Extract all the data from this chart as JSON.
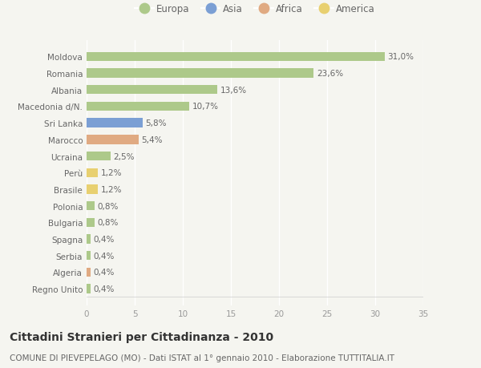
{
  "countries": [
    "Moldova",
    "Romania",
    "Albania",
    "Macedonia d/N.",
    "Sri Lanka",
    "Marocco",
    "Ucraina",
    "Perù",
    "Brasile",
    "Polonia",
    "Bulgaria",
    "Spagna",
    "Serbia",
    "Algeria",
    "Regno Unito"
  ],
  "values": [
    31.0,
    23.6,
    13.6,
    10.7,
    5.8,
    5.4,
    2.5,
    1.2,
    1.2,
    0.8,
    0.8,
    0.4,
    0.4,
    0.4,
    0.4
  ],
  "labels": [
    "31,0%",
    "23,6%",
    "13,6%",
    "10,7%",
    "5,8%",
    "5,4%",
    "2,5%",
    "1,2%",
    "1,2%",
    "0,8%",
    "0,8%",
    "0,4%",
    "0,4%",
    "0,4%",
    "0,4%"
  ],
  "continents": [
    "Europa",
    "Europa",
    "Europa",
    "Europa",
    "Asia",
    "Africa",
    "Europa",
    "America",
    "America",
    "Europa",
    "Europa",
    "Europa",
    "Europa",
    "Africa",
    "Europa"
  ],
  "continent_colors": {
    "Europa": "#adc98a",
    "Asia": "#7b9fd4",
    "Africa": "#e0aa82",
    "America": "#e8d070"
  },
  "legend_order": [
    "Europa",
    "Asia",
    "Africa",
    "America"
  ],
  "xlim": [
    0,
    35
  ],
  "xticks": [
    0,
    5,
    10,
    15,
    20,
    25,
    30,
    35
  ],
  "title": "Cittadini Stranieri per Cittadinanza - 2010",
  "subtitle": "COMUNE DI PIEVEPELAGO (MO) - Dati ISTAT al 1° gennaio 2010 - Elaborazione TUTTITALIA.IT",
  "bg_color": "#f5f5f0",
  "bar_height": 0.55,
  "title_fontsize": 10,
  "subtitle_fontsize": 7.5,
  "label_fontsize": 7.5,
  "tick_fontsize": 7.5,
  "legend_fontsize": 8.5
}
